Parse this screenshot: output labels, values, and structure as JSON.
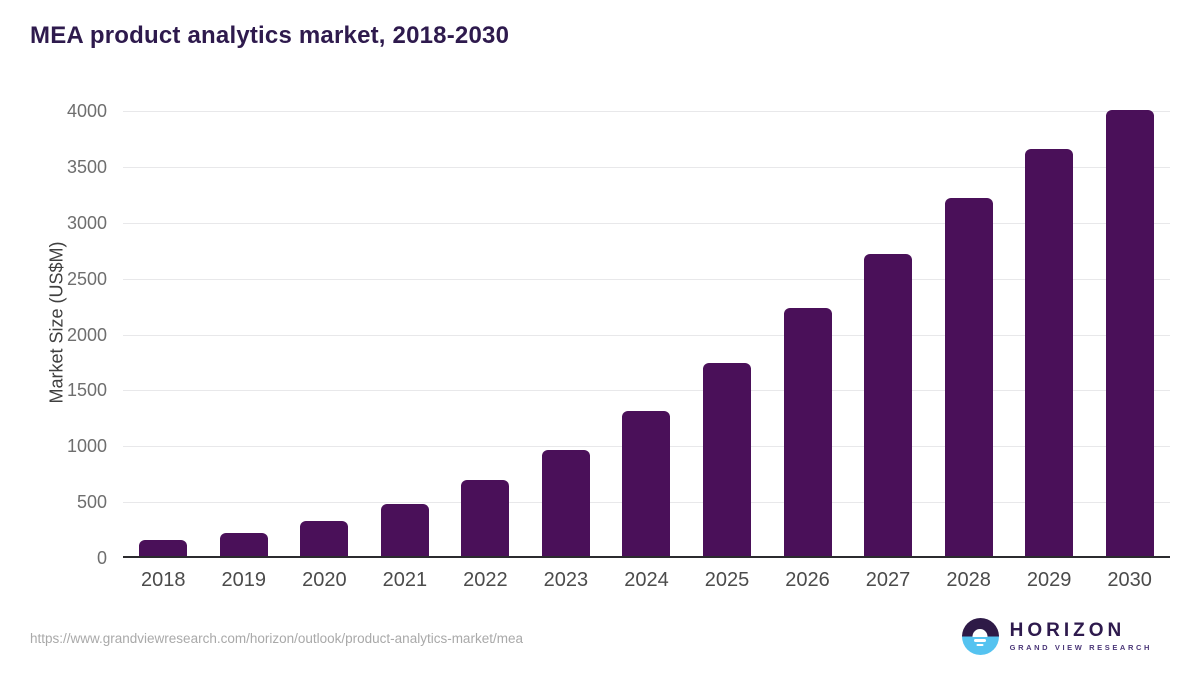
{
  "title": "MEA product analytics market, 2018-2030",
  "footer": {
    "source_url": "https://www.grandviewresearch.com/horizon/outlook/product-analytics-market/mea",
    "logo": {
      "name": "HORIZON",
      "subtitle": "GRAND VIEW RESEARCH"
    }
  },
  "chart_data": {
    "type": "bar",
    "title": "MEA product analytics market, 2018-2030",
    "categories": [
      "2018",
      "2019",
      "2020",
      "2021",
      "2022",
      "2023",
      "2024",
      "2025",
      "2026",
      "2027",
      "2028",
      "2029",
      "2030"
    ],
    "values": [
      140,
      210,
      310,
      465,
      680,
      950,
      1300,
      1730,
      2215,
      2700,
      3200,
      3645,
      3990
    ],
    "xlabel": "",
    "ylabel": "Market Size (US$M)",
    "ylim": [
      0,
      4000
    ],
    "yticks": [
      0,
      500,
      1000,
      1500,
      2000,
      2500,
      3000,
      3500,
      4000
    ],
    "grid": "horizontal",
    "legend": false,
    "bar_color": "#4a1059"
  },
  "colors": {
    "title": "#2e1a4d",
    "bar": "#4a1059",
    "gridline": "#e8e8ea",
    "axis_line": "#2b2b2e",
    "y_tick": "#6e6e6e",
    "x_label": "#4b4b4b",
    "y_axis_title": "#3f3f3f",
    "source_url": "#a9a9a9",
    "logo_purple": "#2e1a47",
    "logo_blue": "#55c3f0"
  }
}
